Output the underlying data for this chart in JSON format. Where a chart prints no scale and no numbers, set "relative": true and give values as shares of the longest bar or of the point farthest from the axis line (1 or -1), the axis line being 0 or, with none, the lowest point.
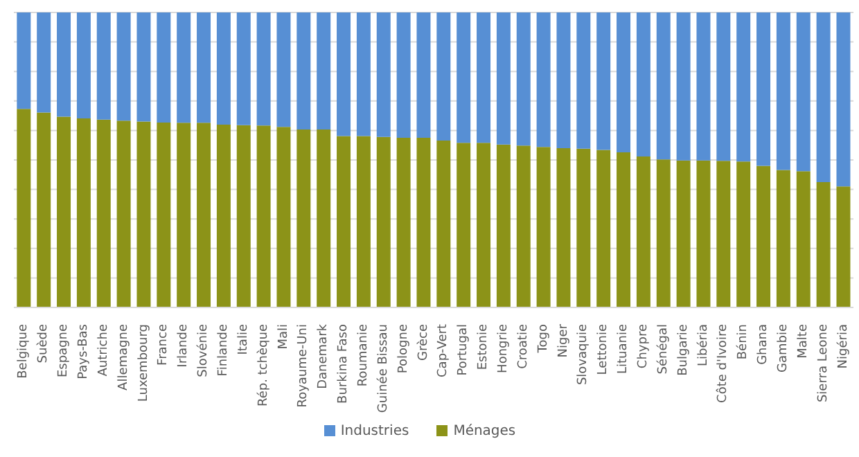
{
  "chart_data": {
    "type": "bar",
    "stacked": true,
    "relative": true,
    "grid": "y",
    "legend": "bottom",
    "categories": [
      "Belgique",
      "Suède",
      "Espagne",
      "Pays-Bas",
      "Autriche",
      "Allemagne",
      "Luxembourg",
      "France",
      "Irlande",
      "Slovénie",
      "Finlande",
      "Italie",
      "Rép. tchèque",
      "Mali",
      "Royaume-Uni",
      "Danemark",
      "Burkina Faso",
      "Roumanie",
      "Guinée Bissau",
      "Pologne",
      "Grèce",
      "Cap-Vert",
      "Portugal",
      "Estonie",
      "Hongrie",
      "Croatie",
      "Togo",
      "Niger",
      "Slovaquie",
      "Lettonie",
      "Lituanie",
      "Chypre",
      "Sénégal",
      "Bulgarie",
      "Libéria",
      "Côte d'Ivoire",
      "Bénin",
      "Ghana",
      "Gambie",
      "Malte",
      "Sierra Leone",
      "Nigéria"
    ],
    "series": [
      {
        "name": "Ménages",
        "color": "#8c9318",
        "values": [
          0.673,
          0.661,
          0.647,
          0.641,
          0.637,
          0.633,
          0.63,
          0.627,
          0.626,
          0.626,
          0.62,
          0.618,
          0.617,
          0.612,
          0.603,
          0.603,
          0.581,
          0.581,
          0.578,
          0.575,
          0.575,
          0.566,
          0.558,
          0.558,
          0.552,
          0.549,
          0.544,
          0.54,
          0.538,
          0.534,
          0.526,
          0.512,
          0.502,
          0.498,
          0.498,
          0.497,
          0.495,
          0.48,
          0.466,
          0.462,
          0.425,
          0.41
        ]
      },
      {
        "name": "Industries",
        "color": "#578fd4",
        "values": [
          0.327,
          0.339,
          0.353,
          0.359,
          0.363,
          0.367,
          0.37,
          0.373,
          0.374,
          0.374,
          0.38,
          0.382,
          0.383,
          0.388,
          0.397,
          0.397,
          0.419,
          0.419,
          0.422,
          0.425,
          0.425,
          0.434,
          0.442,
          0.442,
          0.448,
          0.451,
          0.456,
          0.46,
          0.462,
          0.466,
          0.474,
          0.488,
          0.498,
          0.502,
          0.502,
          0.503,
          0.505,
          0.52,
          0.534,
          0.538,
          0.575,
          0.59
        ]
      }
    ]
  }
}
